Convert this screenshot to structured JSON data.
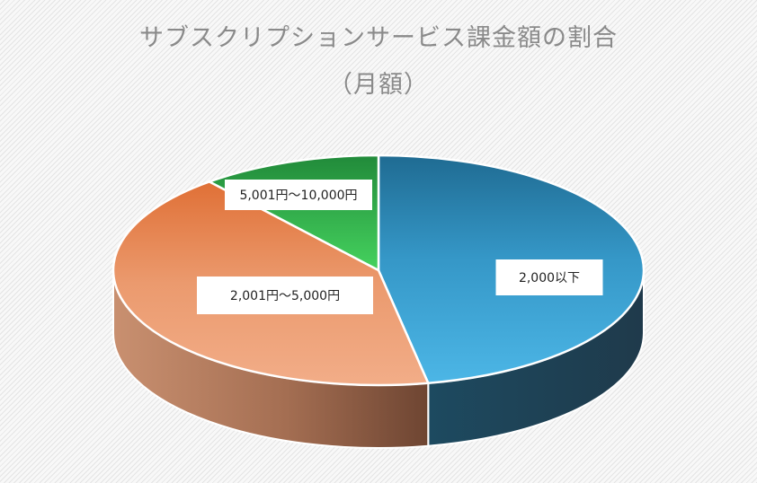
{
  "chart_data": {
    "type": "pie",
    "title_line1": "サブスクリプションサービス課金額の割合",
    "title_line2": "（月額）",
    "categories": [
      "2,000以下",
      "2,001円〜5,000円",
      "5,001円〜10,000円"
    ],
    "values": [
      47,
      42,
      11
    ],
    "colors": [
      "#3fa3d3",
      "#e88c5c",
      "#3cc457"
    ],
    "legend": "none",
    "style": "3d-pie"
  }
}
